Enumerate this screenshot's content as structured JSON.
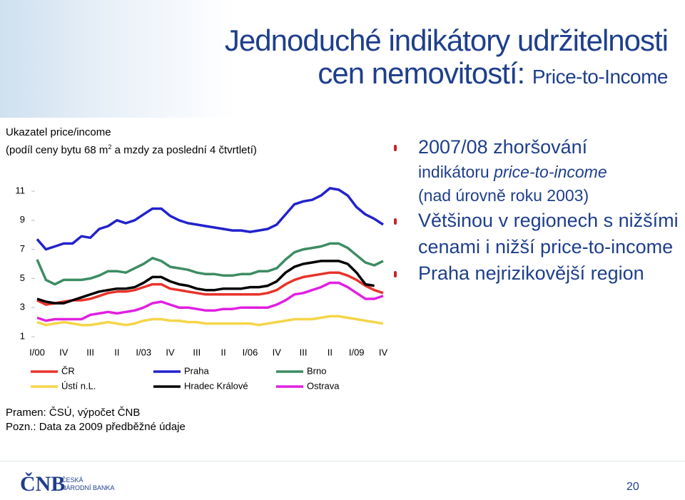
{
  "slide": {
    "title_line1": "Jednoduché indikátory udržitelnosti",
    "title_line2": "cen nemovitostí: ",
    "title_line2_small": "Price-to-Income",
    "desc_line1": "Ukazatel price/income",
    "desc_line2a": "(podíl ceny bytu 68 m",
    "desc_sup": "2",
    "desc_line2b": " a mzdy za poslední 4 čtvrtletí)",
    "note1": "Pramen: ČSÚ, výpočet ČNB",
    "note2": "Pozn.: Data za 2009 předběžné údaje",
    "bullet1_main": "2007/08 zhoršování",
    "bullet1_sub1a": "indikátoru ",
    "bullet1_sub1b": "price-to-income",
    "bullet1_sub2": "(nad úrovně roku 2003)",
    "bullet2": "Většinou v regionech s nižšími cenami i nižší price-to-income",
    "bullet3": "Praha nejrizikovější region",
    "logo_mark": "ČNB",
    "logo_text1": "ČESKÁ",
    "logo_text2": "NÁRODNÍ BANKA",
    "page_number": "20"
  },
  "chart_data": {
    "type": "line",
    "categories": [
      "I/00",
      null,
      null,
      "IV",
      null,
      null,
      "III",
      null,
      null,
      "II",
      null,
      null,
      "I/03",
      null,
      null,
      "IV",
      null,
      null,
      "III",
      null,
      null,
      "II",
      null,
      null,
      "I/06",
      null,
      null,
      "IV",
      null,
      null,
      "III",
      null,
      null,
      "II",
      null,
      null,
      "I/09",
      null,
      null,
      "IV"
    ],
    "ylim": [
      1,
      11
    ],
    "yticks": [
      1,
      3,
      5,
      7,
      9,
      11
    ],
    "grid": false,
    "series": [
      {
        "name": "ČR",
        "color": "#e8332b",
        "values": [
          3.5,
          3.2,
          3.3,
          3.4,
          3.5,
          3.5,
          3.6,
          3.8,
          4.0,
          4.1,
          4.1,
          4.2,
          4.4,
          4.6,
          4.6,
          4.3,
          4.2,
          4.1,
          4.0,
          3.9,
          3.9,
          3.9,
          3.9,
          3.9,
          3.9,
          3.9,
          4.0,
          4.2,
          4.6,
          4.9,
          5.1,
          5.2,
          5.3,
          5.4,
          5.4,
          5.2,
          4.9,
          4.5,
          4.2,
          4.0
        ]
      },
      {
        "name": "Praha",
        "color": "#2222cc",
        "values": [
          7.7,
          7.0,
          7.2,
          7.4,
          7.4,
          7.9,
          7.8,
          8.4,
          8.6,
          9.0,
          8.8,
          9.0,
          9.4,
          9.8,
          9.8,
          9.3,
          9.0,
          8.8,
          8.7,
          8.6,
          8.5,
          8.4,
          8.3,
          8.3,
          8.2,
          8.3,
          8.4,
          8.7,
          9.4,
          10.1,
          10.3,
          10.4,
          10.7,
          11.2,
          11.1,
          10.7,
          9.9,
          9.4,
          9.1,
          8.7
        ]
      },
      {
        "name": "Brno",
        "color": "#3d8c63",
        "values": [
          6.3,
          4.9,
          4.6,
          4.9,
          4.9,
          4.9,
          5.0,
          5.2,
          5.5,
          5.5,
          5.4,
          5.7,
          6.0,
          6.4,
          6.2,
          5.8,
          5.7,
          5.6,
          5.4,
          5.3,
          5.3,
          5.2,
          5.2,
          5.3,
          5.3,
          5.5,
          5.5,
          5.7,
          6.3,
          6.8,
          7.0,
          7.1,
          7.2,
          7.4,
          7.4,
          7.1,
          6.6,
          6.1,
          5.9,
          6.2
        ]
      },
      {
        "name": "Ústí n.L.",
        "color": "#f5d54a",
        "values": [
          2.0,
          1.8,
          1.9,
          2.0,
          1.9,
          1.8,
          1.8,
          1.9,
          2.0,
          1.9,
          1.8,
          1.9,
          2.1,
          2.2,
          2.2,
          2.1,
          2.1,
          2.0,
          2.0,
          1.9,
          1.9,
          1.9,
          1.9,
          1.9,
          1.9,
          1.8,
          1.9,
          2.0,
          2.1,
          2.2,
          2.2,
          2.2,
          2.3,
          2.4,
          2.4,
          2.3,
          2.2,
          2.1,
          2.0,
          1.9
        ]
      },
      {
        "name": "Hradec Králové",
        "color": "#000000",
        "values": [
          3.6,
          3.4,
          3.3,
          3.3,
          3.5,
          3.7,
          3.9,
          4.1,
          4.2,
          4.3,
          4.3,
          4.4,
          4.7,
          5.1,
          5.1,
          4.8,
          4.6,
          4.5,
          4.3,
          4.2,
          4.2,
          4.3,
          4.3,
          4.3,
          4.4,
          4.4,
          4.5,
          4.8,
          5.4,
          5.8,
          6.0,
          6.1,
          6.2,
          6.2,
          6.2,
          6.0,
          5.4,
          4.6,
          4.5,
          null
        ]
      },
      {
        "name": "Ostrava",
        "color": "#e020e0",
        "values": [
          2.3,
          2.1,
          2.2,
          2.2,
          2.2,
          2.2,
          2.5,
          2.6,
          2.7,
          2.6,
          2.7,
          2.8,
          3.0,
          3.3,
          3.4,
          3.2,
          3.0,
          3.0,
          2.9,
          2.8,
          2.8,
          2.9,
          2.9,
          3.0,
          3.0,
          3.0,
          3.0,
          3.2,
          3.5,
          3.9,
          4.0,
          4.2,
          4.4,
          4.7,
          4.7,
          4.4,
          4.0,
          3.6,
          3.6,
          3.8
        ]
      }
    ]
  }
}
